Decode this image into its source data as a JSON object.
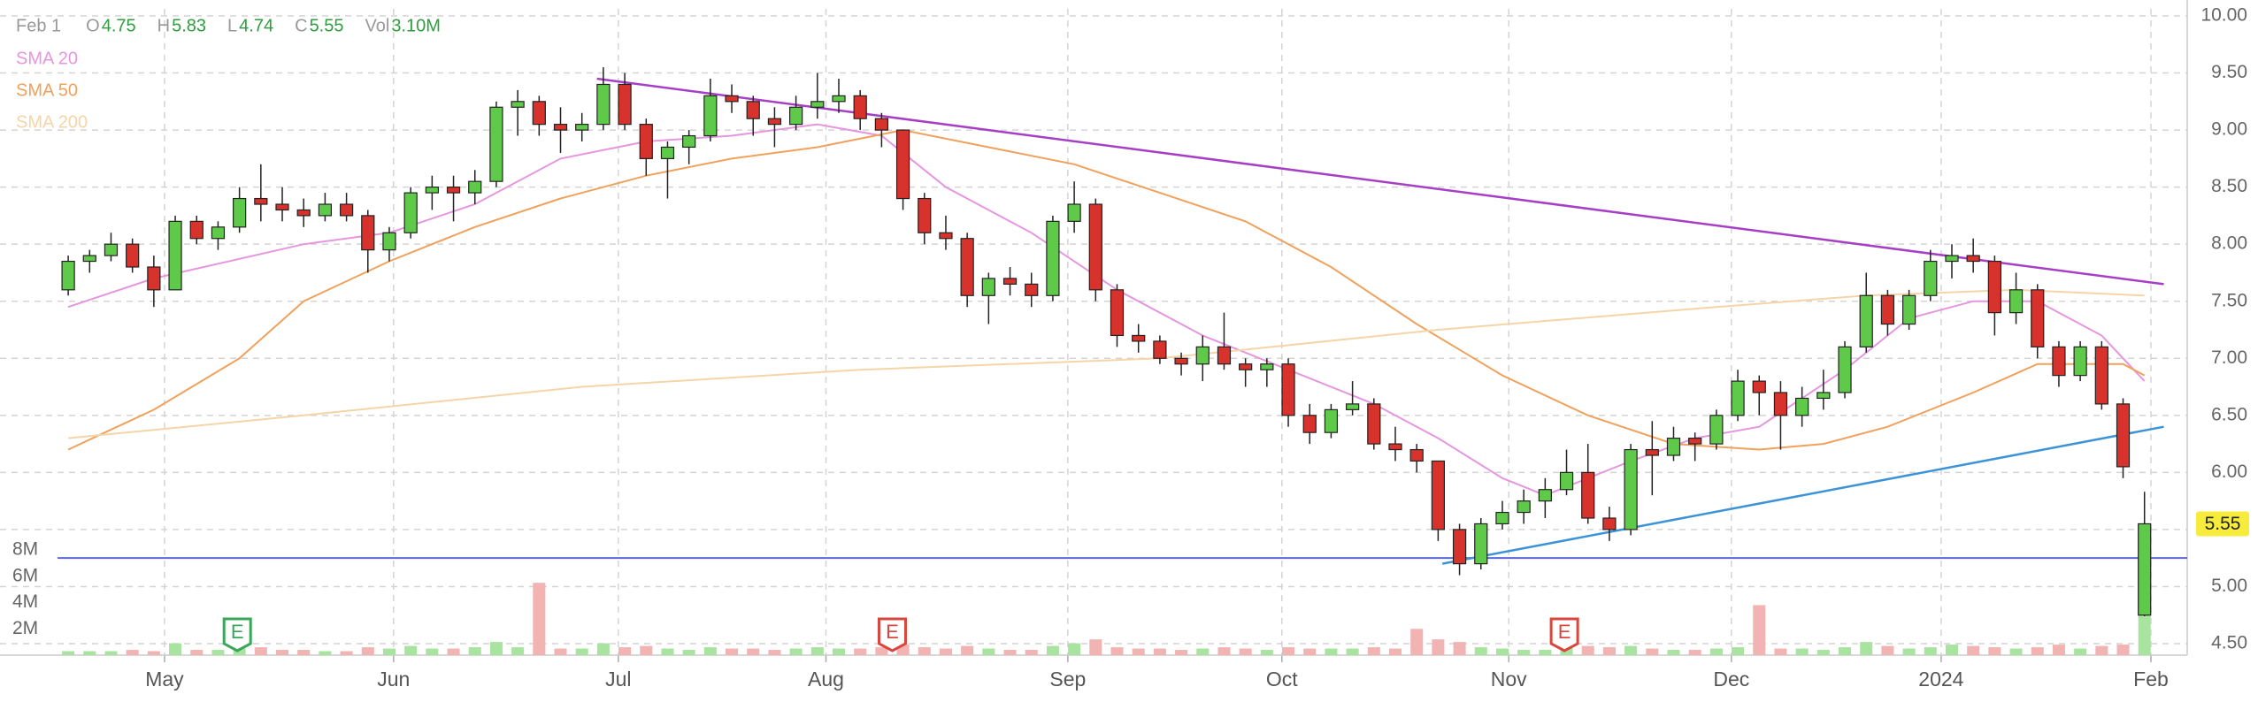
{
  "chart_data": {
    "type": "candlestick",
    "header": {
      "date": "Feb 1",
      "fields": [
        [
          "O",
          4.75
        ],
        [
          "H",
          5.83
        ],
        [
          "L",
          4.74
        ],
        [
          "C",
          5.55
        ],
        [
          "Vol",
          "3.10M"
        ]
      ]
    },
    "candles": {
      "up_color": "#5fc94a",
      "down_color": "#d7322c",
      "volume_up_color": "#a9e3a0",
      "volume_down_color": "#f2b3b3",
      "ohlcv": [
        [
          7.6,
          7.9,
          7.55,
          7.85,
          0.3
        ],
        [
          7.85,
          7.95,
          7.75,
          7.9,
          0.3
        ],
        [
          7.9,
          8.1,
          7.85,
          8.0,
          0.3
        ],
        [
          8.0,
          8.05,
          7.75,
          7.8,
          0.4
        ],
        [
          7.8,
          7.9,
          7.45,
          7.6,
          0.3
        ],
        [
          7.6,
          8.25,
          7.6,
          8.2,
          0.9
        ],
        [
          8.2,
          8.25,
          8.0,
          8.05,
          0.4
        ],
        [
          8.05,
          8.2,
          7.95,
          8.15,
          0.4
        ],
        [
          8.15,
          8.5,
          8.1,
          8.4,
          0.5
        ],
        [
          8.4,
          8.7,
          8.2,
          8.35,
          0.6
        ],
        [
          8.35,
          8.5,
          8.2,
          8.3,
          0.4
        ],
        [
          8.3,
          8.4,
          8.15,
          8.25,
          0.4
        ],
        [
          8.25,
          8.45,
          8.2,
          8.35,
          0.3
        ],
        [
          8.35,
          8.45,
          8.2,
          8.25,
          0.3
        ],
        [
          8.25,
          8.3,
          7.75,
          7.95,
          0.6
        ],
        [
          7.95,
          8.15,
          7.85,
          8.1,
          0.5
        ],
        [
          8.1,
          8.5,
          8.05,
          8.45,
          0.7
        ],
        [
          8.45,
          8.6,
          8.3,
          8.5,
          0.5
        ],
        [
          8.5,
          8.6,
          8.2,
          8.45,
          0.5
        ],
        [
          8.45,
          8.65,
          8.35,
          8.55,
          0.6
        ],
        [
          8.55,
          9.25,
          8.5,
          9.2,
          1.0
        ],
        [
          9.2,
          9.35,
          8.95,
          9.25,
          0.6
        ],
        [
          9.25,
          9.3,
          8.95,
          9.05,
          5.5
        ],
        [
          9.05,
          9.2,
          8.8,
          9.0,
          0.5
        ],
        [
          9.0,
          9.15,
          8.9,
          9.05,
          0.5
        ],
        [
          9.05,
          9.55,
          9.0,
          9.4,
          0.9
        ],
        [
          9.4,
          9.5,
          9.0,
          9.05,
          0.6
        ],
        [
          9.05,
          9.1,
          8.6,
          8.75,
          0.7
        ],
        [
          8.75,
          8.9,
          8.4,
          8.85,
          0.5
        ],
        [
          8.85,
          9.0,
          8.7,
          8.95,
          0.4
        ],
        [
          8.95,
          9.45,
          8.9,
          9.3,
          0.6
        ],
        [
          9.3,
          9.4,
          9.15,
          9.25,
          0.5
        ],
        [
          9.25,
          9.3,
          8.95,
          9.1,
          0.5
        ],
        [
          9.1,
          9.2,
          8.85,
          9.05,
          0.4
        ],
        [
          9.05,
          9.3,
          9.0,
          9.2,
          0.5
        ],
        [
          9.2,
          9.5,
          9.1,
          9.25,
          0.6
        ],
        [
          9.25,
          9.45,
          9.15,
          9.3,
          0.5
        ],
        [
          9.3,
          9.35,
          9.0,
          9.1,
          0.5
        ],
        [
          9.1,
          9.15,
          8.85,
          9.0,
          0.6
        ],
        [
          9.0,
          9.0,
          8.3,
          8.4,
          0.8
        ],
        [
          8.4,
          8.45,
          8.0,
          8.1,
          0.6
        ],
        [
          8.1,
          8.25,
          7.95,
          8.05,
          0.5
        ],
        [
          8.05,
          8.1,
          7.45,
          7.55,
          0.7
        ],
        [
          7.55,
          7.75,
          7.3,
          7.7,
          0.5
        ],
        [
          7.7,
          7.8,
          7.55,
          7.65,
          0.4
        ],
        [
          7.65,
          7.75,
          7.45,
          7.55,
          0.4
        ],
        [
          7.55,
          8.25,
          7.5,
          8.2,
          0.7
        ],
        [
          8.2,
          8.55,
          8.1,
          8.35,
          0.9
        ],
        [
          8.35,
          8.4,
          7.5,
          7.6,
          1.2
        ],
        [
          7.6,
          7.65,
          7.1,
          7.2,
          0.6
        ],
        [
          7.2,
          7.3,
          7.05,
          7.15,
          0.5
        ],
        [
          7.15,
          7.2,
          6.95,
          7.0,
          0.5
        ],
        [
          7.0,
          7.05,
          6.85,
          6.95,
          0.4
        ],
        [
          6.95,
          7.2,
          6.8,
          7.1,
          0.5
        ],
        [
          7.1,
          7.4,
          6.9,
          6.95,
          0.6
        ],
        [
          6.95,
          7.0,
          6.75,
          6.9,
          0.5
        ],
        [
          6.9,
          7.0,
          6.75,
          6.95,
          0.4
        ],
        [
          6.95,
          7.0,
          6.4,
          6.5,
          0.6
        ],
        [
          6.5,
          6.6,
          6.25,
          6.35,
          0.5
        ],
        [
          6.35,
          6.6,
          6.3,
          6.55,
          0.5
        ],
        [
          6.55,
          6.8,
          6.5,
          6.6,
          0.5
        ],
        [
          6.6,
          6.65,
          6.2,
          6.25,
          0.6
        ],
        [
          6.25,
          6.4,
          6.1,
          6.2,
          0.5
        ],
        [
          6.2,
          6.25,
          6.0,
          6.1,
          2.0
        ],
        [
          6.1,
          6.1,
          5.4,
          5.5,
          1.2
        ],
        [
          5.5,
          5.55,
          5.1,
          5.2,
          1.0
        ],
        [
          5.2,
          5.6,
          5.15,
          5.55,
          0.6
        ],
        [
          5.55,
          5.75,
          5.5,
          5.65,
          0.5
        ],
        [
          5.65,
          5.85,
          5.55,
          5.75,
          0.4
        ],
        [
          5.75,
          5.95,
          5.6,
          5.85,
          0.4
        ],
        [
          5.85,
          6.2,
          5.8,
          6.0,
          0.6
        ],
        [
          6.0,
          6.25,
          5.55,
          5.6,
          0.7
        ],
        [
          5.6,
          5.7,
          5.4,
          5.5,
          0.6
        ],
        [
          5.5,
          6.25,
          5.45,
          6.2,
          0.7
        ],
        [
          6.2,
          6.45,
          5.8,
          6.15,
          0.5
        ],
        [
          6.15,
          6.4,
          6.1,
          6.3,
          0.4
        ],
        [
          6.3,
          6.35,
          6.1,
          6.25,
          0.4
        ],
        [
          6.25,
          6.55,
          6.2,
          6.5,
          0.5
        ],
        [
          6.5,
          6.9,
          6.45,
          6.8,
          0.6
        ],
        [
          6.8,
          6.85,
          6.5,
          6.7,
          3.8
        ],
        [
          6.7,
          6.8,
          6.2,
          6.5,
          0.5
        ],
        [
          6.5,
          6.75,
          6.4,
          6.65,
          0.5
        ],
        [
          6.65,
          6.9,
          6.55,
          6.7,
          0.4
        ],
        [
          6.7,
          7.15,
          6.65,
          7.1,
          0.6
        ],
        [
          7.1,
          7.75,
          7.05,
          7.55,
          1.0
        ],
        [
          7.55,
          7.6,
          7.2,
          7.3,
          0.7
        ],
        [
          7.3,
          7.6,
          7.25,
          7.55,
          0.5
        ],
        [
          7.55,
          7.95,
          7.5,
          7.85,
          0.6
        ],
        [
          7.85,
          8.0,
          7.7,
          7.9,
          0.8
        ],
        [
          7.9,
          8.05,
          7.75,
          7.85,
          0.7
        ],
        [
          7.85,
          7.9,
          7.2,
          7.4,
          0.6
        ],
        [
          7.4,
          7.75,
          7.3,
          7.6,
          0.5
        ],
        [
          7.6,
          7.65,
          7.0,
          7.1,
          0.6
        ],
        [
          7.1,
          7.15,
          6.75,
          6.85,
          0.8
        ],
        [
          6.85,
          7.15,
          6.8,
          7.1,
          0.5
        ],
        [
          7.1,
          7.15,
          6.55,
          6.6,
          0.7
        ],
        [
          6.6,
          6.65,
          5.95,
          6.05,
          0.8
        ],
        [
          4.75,
          5.83,
          4.74,
          5.55,
          3.1
        ]
      ]
    },
    "xlim": [
      -0.5,
      98.5
    ],
    "xticks": [
      {
        "value": 4.5,
        "label": "May"
      },
      {
        "value": 15.2,
        "label": "Jun"
      },
      {
        "value": 25.7,
        "label": "Jul"
      },
      {
        "value": 35.4,
        "label": "Aug"
      },
      {
        "value": 46.7,
        "label": "Sep"
      },
      {
        "value": 56.7,
        "label": "Oct"
      },
      {
        "value": 67.3,
        "label": "Nov"
      },
      {
        "value": 77.7,
        "label": "Dec"
      },
      {
        "value": 87.5,
        "label": "2024"
      },
      {
        "value": 97.3,
        "label": "Feb"
      }
    ],
    "ylim": [
      4.5,
      10
    ],
    "yticks": [
      {
        "value": 4.5,
        "label": "4.50"
      },
      {
        "value": 5,
        "label": "5.00"
      },
      {
        "value": 5.5,
        "label": "5.50"
      },
      {
        "value": 6,
        "label": "6.00"
      },
      {
        "value": 6.5,
        "label": "6.50"
      },
      {
        "value": 7,
        "label": "7.00"
      },
      {
        "value": 7.5,
        "label": "7.50"
      },
      {
        "value": 8,
        "label": "8.00"
      },
      {
        "value": 8.5,
        "label": "8.50"
      },
      {
        "value": 9,
        "label": "9.00"
      },
      {
        "value": 9.5,
        "label": "9.50"
      },
      {
        "value": 10,
        "label": "10.00"
      }
    ],
    "volume": {
      "vlim": [
        0,
        8
      ],
      "vticks": [
        {
          "value": 2,
          "label": "2M"
        },
        {
          "value": 4,
          "label": "4M"
        },
        {
          "value": 6,
          "label": "6M"
        },
        {
          "value": 8,
          "label": "8M"
        }
      ]
    },
    "series": [
      {
        "name": "SMA 20",
        "color": "#e596df",
        "x": [
          0,
          4,
          11,
          15,
          19,
          23,
          27,
          31,
          35,
          38,
          41,
          45,
          49,
          53,
          57,
          61,
          64,
          67,
          69,
          73,
          76,
          79,
          83,
          86,
          89,
          92,
          95,
          97
        ],
        "values": [
          7.45,
          7.7,
          8.0,
          8.1,
          8.35,
          8.75,
          8.9,
          8.95,
          9.05,
          8.95,
          8.5,
          8.1,
          7.6,
          7.2,
          6.9,
          6.6,
          6.3,
          5.95,
          5.8,
          6.1,
          6.3,
          6.4,
          6.9,
          7.35,
          7.5,
          7.5,
          7.2,
          6.8
        ]
      },
      {
        "name": "SMA 50",
        "color": "#f0a15c",
        "x": [
          0,
          4,
          8,
          11,
          15,
          19,
          23,
          27,
          31,
          35,
          39,
          43,
          47,
          51,
          55,
          59,
          63,
          67,
          71,
          75,
          79,
          82,
          85,
          89,
          92,
          96,
          97
        ],
        "values": [
          6.2,
          6.55,
          7.0,
          7.5,
          7.85,
          8.15,
          8.4,
          8.6,
          8.75,
          8.85,
          9.0,
          8.85,
          8.7,
          8.45,
          8.2,
          7.8,
          7.3,
          6.85,
          6.5,
          6.25,
          6.2,
          6.25,
          6.4,
          6.7,
          6.95,
          6.95,
          6.85
        ]
      },
      {
        "name": "SMA 200",
        "color": "#f5d5a8",
        "x": [
          0,
          11,
          24,
          37,
          51,
          64,
          77,
          84,
          91,
          97
        ],
        "values": [
          6.3,
          6.5,
          6.75,
          6.9,
          7.0,
          7.25,
          7.45,
          7.55,
          7.6,
          7.55
        ]
      }
    ],
    "legend": "top-left",
    "trendlines": [
      {
        "color": "#a63fc6",
        "x": [
          24.7,
          97.9
        ],
        "values": [
          9.45,
          7.65
        ]
      },
      {
        "color": "#3c93d8",
        "x": [
          64.2,
          97.9
        ],
        "values": [
          5.2,
          6.4
        ]
      }
    ],
    "hline": {
      "color": "#5668d4",
      "value": 5.25
    },
    "last_price": {
      "value": 5.55,
      "color": "#f7ec3c"
    },
    "earnings": [
      {
        "x": 7.9,
        "label": "E",
        "color": "#3aa65a"
      },
      {
        "x": 38.5,
        "label": "E",
        "color": "#d9463e"
      },
      {
        "x": 69.9,
        "label": "E",
        "color": "#d9463e"
      }
    ],
    "grid": true
  }
}
